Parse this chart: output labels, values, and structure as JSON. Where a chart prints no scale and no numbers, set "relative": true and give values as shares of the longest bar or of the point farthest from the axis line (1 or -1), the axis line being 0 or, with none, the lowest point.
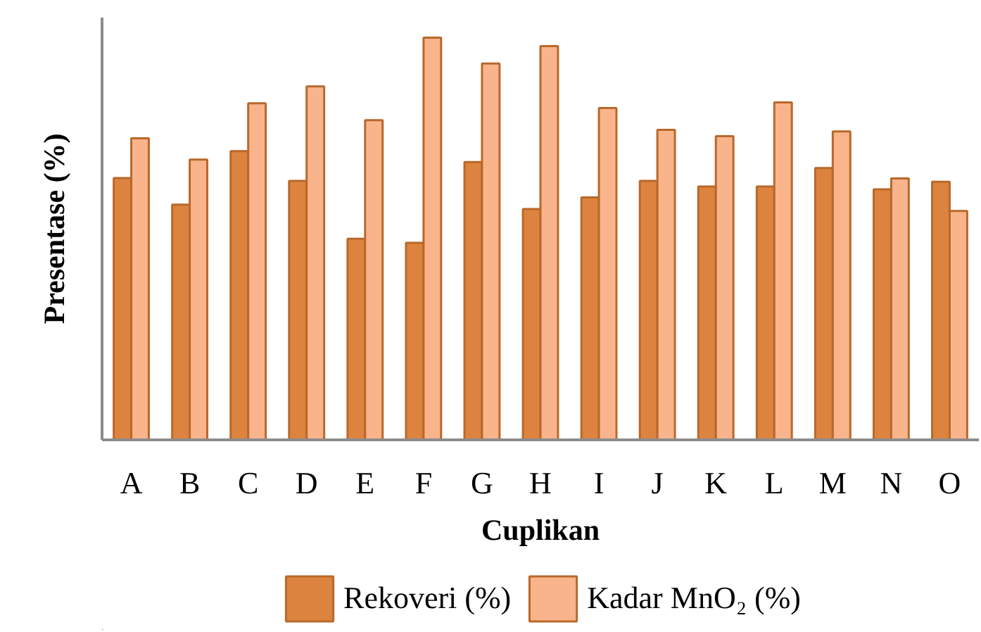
{
  "chart_data": {
    "type": "bar",
    "xlabel": "Cuplikan",
    "ylabel": "Presentase (%)",
    "relative": true,
    "legend": "bottom",
    "categories": [
      "A",
      "B",
      "C",
      "D",
      "E",
      "F",
      "G",
      "H",
      "I",
      "J",
      "K",
      "L",
      "M",
      "N",
      "O"
    ],
    "series": [
      {
        "name": "Rekoveri (%)",
        "color": "#dc843f",
        "values": [
          0.651,
          0.585,
          0.718,
          0.644,
          0.5,
          0.49,
          0.691,
          0.574,
          0.603,
          0.644,
          0.63,
          0.63,
          0.676,
          0.623,
          0.642
        ]
      },
      {
        "name": "Kadar MnO₂ (%)",
        "color": "#f9b48c",
        "values": [
          0.75,
          0.697,
          0.837,
          0.879,
          0.795,
          1.0,
          0.936,
          0.979,
          0.825,
          0.771,
          0.755,
          0.839,
          0.767,
          0.65,
          0.569
        ]
      }
    ]
  }
}
